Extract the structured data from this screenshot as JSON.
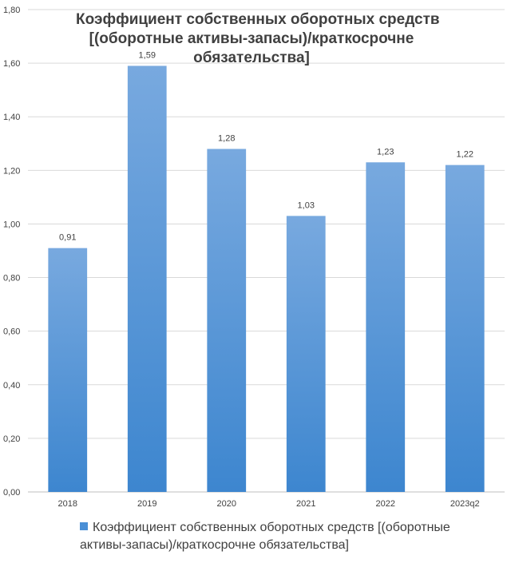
{
  "chart_data": {
    "type": "bar",
    "title_lines": [
      "Коэффициент собственных оборотных средств",
      "[(оборотные активы-запасы)/краткосрочне",
      "обязательства]"
    ],
    "categories": [
      "2018",
      "2019",
      "2020",
      "2021",
      "2022",
      "2023q2"
    ],
    "series": [
      {
        "name": "Коэффициент собственных оборотных средств [(оборотные активы-запасы)/краткосрочне обязательства]",
        "values": [
          0.91,
          1.59,
          1.28,
          1.03,
          1.23,
          1.22
        ],
        "value_labels": [
          "0,91",
          "1,59",
          "1,28",
          "1,03",
          "1,23",
          "1,22"
        ]
      }
    ],
    "y_ticks": [
      "0,00",
      "0,20",
      "0,40",
      "0,60",
      "0,80",
      "1,00",
      "1,20",
      "1,40",
      "1,60",
      "1,80"
    ],
    "ylim": [
      0,
      1.8
    ],
    "grid": true,
    "legend_position": "bottom",
    "colors": {
      "bar_top": "#78a9df",
      "bar_bottom": "#3d86cf",
      "grid": "#d9d9d9",
      "text": "#404040"
    }
  },
  "legend": {
    "line1": "Коэффициент собственных оборотных средств [(оборотные",
    "line2": "активы-запасы)/краткосрочне обязательства]"
  }
}
